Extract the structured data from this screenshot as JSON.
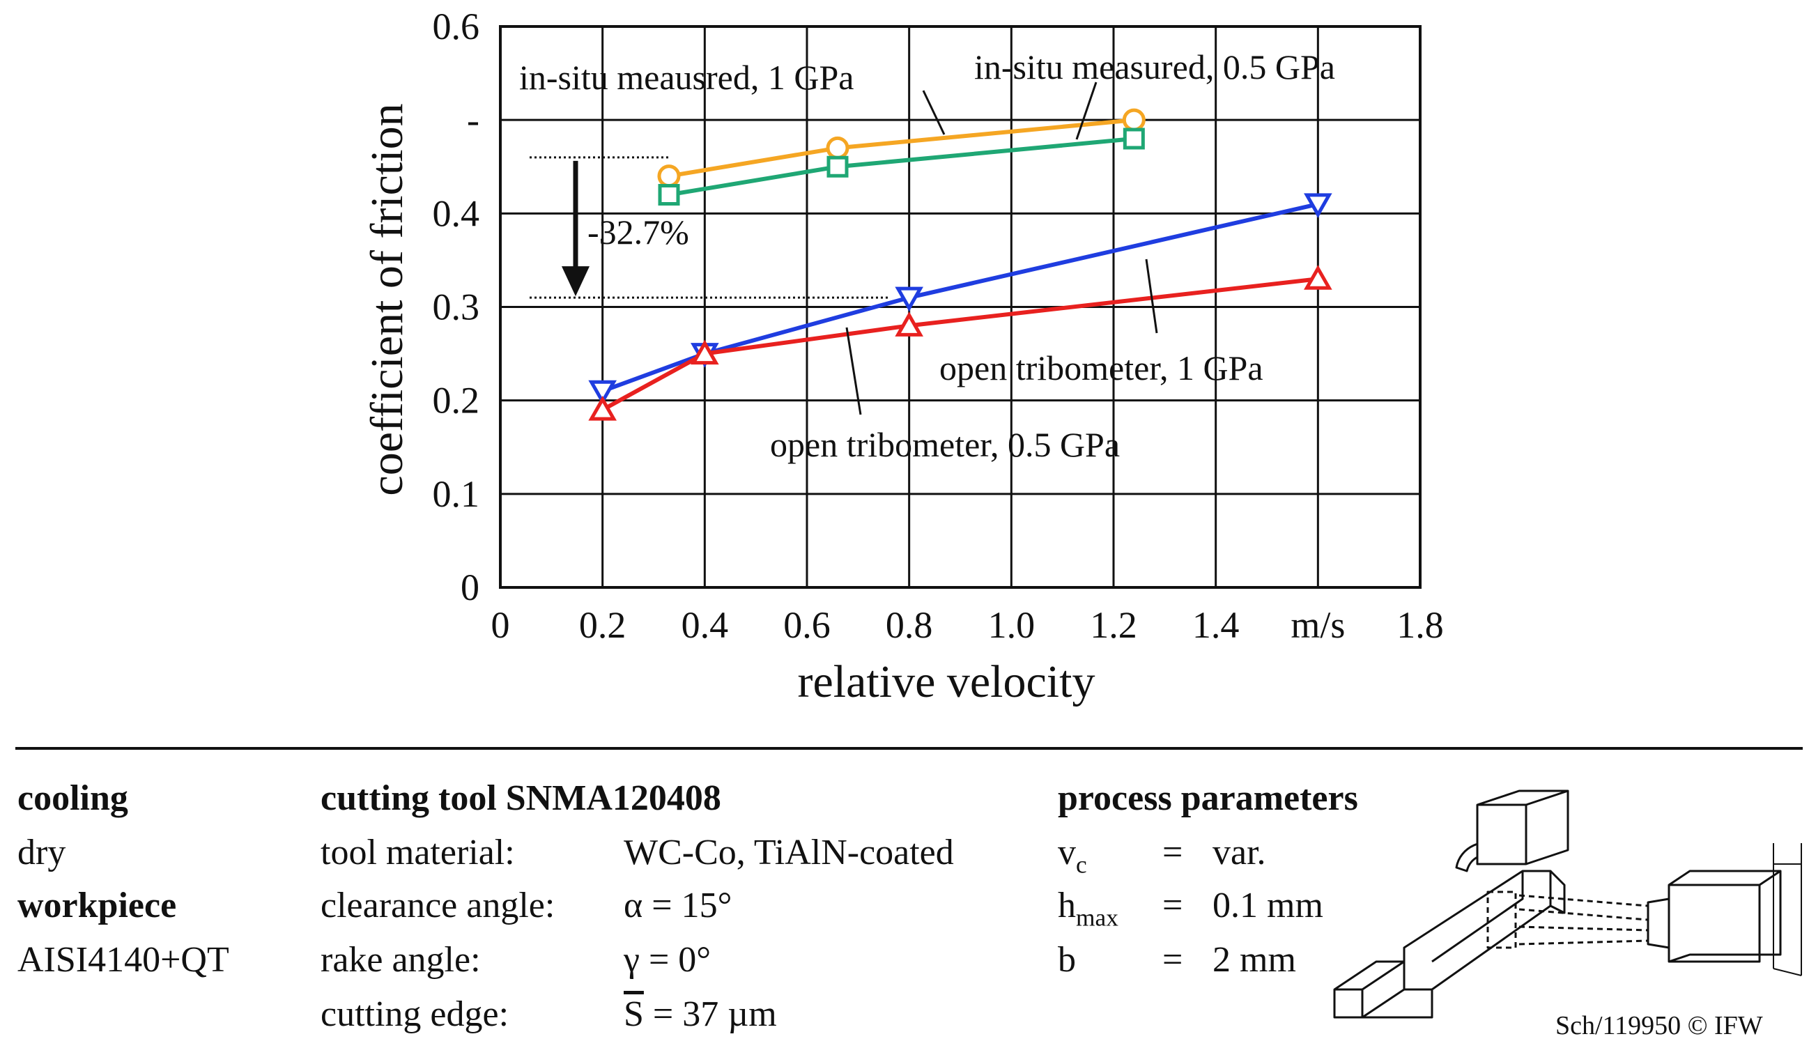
{
  "chart_data": {
    "type": "line",
    "xlabel": "relative velocity",
    "ylabel": "coefficient of friction",
    "xlim": [
      0,
      1.8
    ],
    "ylim": [
      0,
      0.6
    ],
    "x_ticks": [
      "0",
      "0.2",
      "0.4",
      "0.6",
      "0.8",
      "1.0",
      "1.2",
      "1.4",
      "m/s",
      "1.8"
    ],
    "y_ticks": [
      "0",
      "0.1",
      "0.2",
      "0.3",
      "0.4",
      "-",
      "0.6"
    ],
    "grid": true,
    "series": [
      {
        "name": "in-situ meausred, 1 GPa",
        "color": "#f5a623",
        "marker": "circle",
        "x": [
          0.33,
          0.66,
          1.24
        ],
        "y": [
          0.44,
          0.47,
          0.5
        ]
      },
      {
        "name": "in-situ measured, 0.5 GPa",
        "color": "#1fa774",
        "marker": "square",
        "x": [
          0.33,
          0.66,
          1.24
        ],
        "y": [
          0.42,
          0.45,
          0.48
        ]
      },
      {
        "name": "open tribometer, 1 GPa",
        "color": "#1f3de0",
        "marker": "triangle-down",
        "x": [
          0.2,
          0.4,
          0.8,
          1.6
        ],
        "y": [
          0.21,
          0.25,
          0.31,
          0.41
        ]
      },
      {
        "name": "open tribometer, 0.5 GPa",
        "color": "#e8211f",
        "marker": "triangle-up",
        "x": [
          0.2,
          0.4,
          0.8,
          1.6
        ],
        "y": [
          0.19,
          0.25,
          0.28,
          0.33
        ]
      }
    ],
    "annotation": {
      "text": "-32.7%",
      "from_y": 0.46,
      "to_y": 0.31
    }
  },
  "info": {
    "cooling_heading": "cooling",
    "cooling_value": "dry",
    "workpiece_heading": "workpiece",
    "workpiece_value": "AISI4140+QT",
    "tool_heading": "cutting tool SNMA120408",
    "tool_rows": [
      {
        "label": "tool material:",
        "value": "WC-Co, TiAlN-coated"
      },
      {
        "label": "clearance angle:",
        "value": "α = 15°"
      },
      {
        "label": "rake angle:",
        "value": "γ  = 0°"
      },
      {
        "label": "cutting edge:",
        "symbol": "S",
        "value": " = 37 µm"
      }
    ],
    "process_heading": "process parameters",
    "process_rows": [
      {
        "sym": "v",
        "sub": "c",
        "eq": "=",
        "value": "var."
      },
      {
        "sym": "h",
        "sub": "max",
        "eq": "=",
        "value": "0.1 mm"
      },
      {
        "sym": "b",
        "sub": "",
        "eq": "=",
        "value": "2 mm"
      }
    ],
    "credit": "Sch/119950 © IFW"
  }
}
